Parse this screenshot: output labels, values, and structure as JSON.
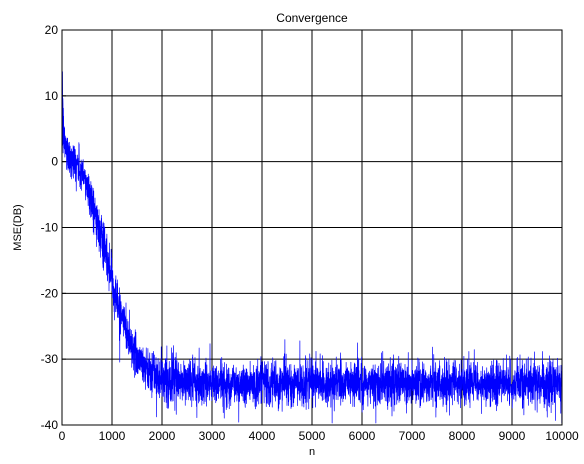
{
  "chart_data": {
    "type": "line",
    "title": "Convergence",
    "xlabel": "n",
    "ylabel": "MSE(DB)",
    "xlim": [
      0,
      10000
    ],
    "ylim": [
      -40,
      20
    ],
    "xticks": [
      0,
      1000,
      2000,
      3000,
      4000,
      5000,
      6000,
      7000,
      8000,
      9000,
      10000
    ],
    "yticks": [
      -40,
      -30,
      -20,
      -10,
      0,
      10,
      20
    ],
    "grid": true,
    "legend": "none",
    "series": [
      {
        "color": "#0000ff",
        "x": [
          0,
          20,
          50,
          100,
          150,
          200,
          300,
          400,
          500,
          600,
          700,
          800,
          900,
          1000,
          1100,
          1200,
          1300,
          1400,
          1500,
          1600,
          1700,
          1800,
          1900,
          2000,
          2200,
          2400,
          2600,
          2800,
          3000,
          3500,
          4000,
          4500,
          5000,
          5500,
          6000,
          6500,
          7000,
          7500,
          8000,
          8500,
          9000,
          9500,
          10000
        ],
        "y": [
          9,
          5,
          3,
          1.5,
          1,
          0.5,
          -0.5,
          -2,
          -3.5,
          -6,
          -9,
          -12,
          -15,
          -18,
          -21,
          -23.5,
          -26,
          -28,
          -29.5,
          -30.5,
          -31.5,
          -32,
          -32.5,
          -33,
          -33.2,
          -33.4,
          -33.5,
          -33.6,
          -33.6,
          -33.7,
          -33.7,
          -33.7,
          -33.7,
          -33.7,
          -33.7,
          -33.7,
          -33.7,
          -33.7,
          -33.7,
          -33.7,
          -33.7,
          -33.7,
          -33.7
        ]
      }
    ]
  }
}
